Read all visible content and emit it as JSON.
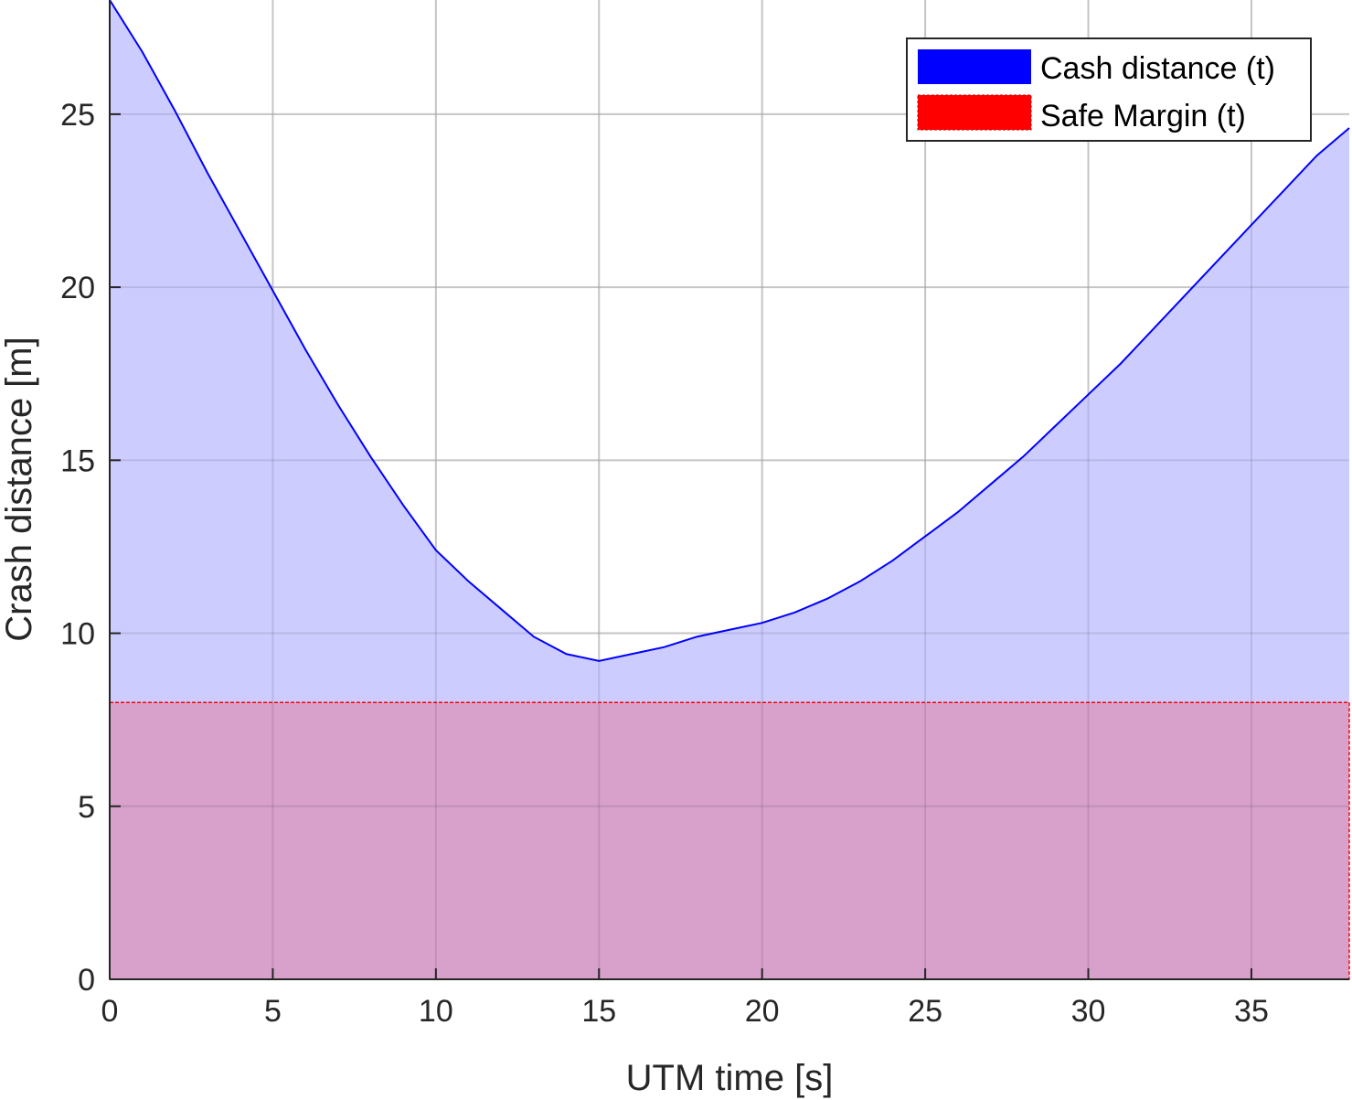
{
  "chart_data": {
    "type": "area",
    "xlabel": "UTM time [s]",
    "ylabel": "Crash distance [m]",
    "xlim": [
      0,
      38
    ],
    "ylim": [
      0,
      28.3
    ],
    "xticks": [
      0,
      5,
      10,
      15,
      20,
      25,
      30,
      35
    ],
    "yticks": [
      0,
      5,
      10,
      15,
      20,
      25
    ],
    "grid": true,
    "legend_position": "top-right",
    "series": [
      {
        "name": "Cash distance (t)",
        "color": "#0000ff",
        "fill_color": "#ccccff",
        "x": [
          0,
          1,
          2,
          3,
          4,
          5,
          6,
          7,
          8,
          9,
          10,
          11,
          12,
          13,
          14,
          15,
          16,
          17,
          18,
          19,
          20,
          21,
          22,
          23,
          24,
          25,
          26,
          27,
          28,
          29,
          30,
          31,
          32,
          33,
          34,
          35,
          36,
          37,
          38
        ],
        "values": [
          28.3,
          26.8,
          25.1,
          23.3,
          21.6,
          19.9,
          18.2,
          16.6,
          15.1,
          13.7,
          12.4,
          11.5,
          10.7,
          9.9,
          9.4,
          9.2,
          9.4,
          9.6,
          9.9,
          10.1,
          10.3,
          10.6,
          11.0,
          11.5,
          12.1,
          12.8,
          13.5,
          14.3,
          15.1,
          16.0,
          16.9,
          17.8,
          18.8,
          19.8,
          20.8,
          21.8,
          22.8,
          23.8,
          24.6
        ]
      },
      {
        "name": "Safe Margin (t)",
        "color": "#ff0000",
        "fill_color": "#d7a1cb",
        "x": [
          0,
          38
        ],
        "values": [
          8,
          8
        ]
      }
    ]
  }
}
